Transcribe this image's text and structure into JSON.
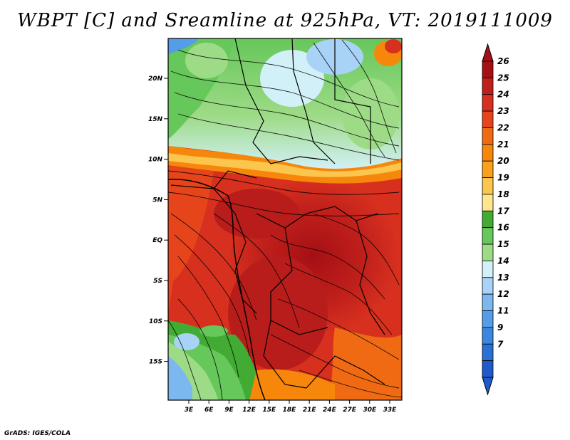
{
  "title": "WBPT [C] and Sreamline at 925hPa, VT: 2019111009",
  "credit": "GrADS: IGES/COLA",
  "map": {
    "lat_labels": [
      "20N",
      "15N",
      "10N",
      "5N",
      "EQ",
      "5S",
      "10S",
      "15S"
    ],
    "lon_labels": [
      "3E",
      "6E",
      "9E",
      "12E",
      "15E",
      "18E",
      "21E",
      "24E",
      "27E",
      "30E",
      "33E"
    ],
    "variable": "Wet-bulb potential temperature",
    "units": "C",
    "level": "925hPa",
    "valid_time": "2019111009"
  },
  "colorbar": {
    "labels": [
      "26",
      "25",
      "24",
      "23",
      "22",
      "21",
      "20",
      "19",
      "18",
      "17",
      "16",
      "15",
      "14",
      "13",
      "12",
      "11",
      "9",
      "7"
    ],
    "colors": [
      "#a50f15",
      "#c0201b",
      "#d7301f",
      "#e6451c",
      "#f06a13",
      "#f6870b",
      "#f9a11c",
      "#fbc54e",
      "#fde68c",
      "#41ab34",
      "#66c75a",
      "#9edb87",
      "#d2f0f7",
      "#a9d3f6",
      "#7ab8ef",
      "#549de8",
      "#3b86e0",
      "#2a6fd6",
      "#1f5acb"
    ]
  }
}
